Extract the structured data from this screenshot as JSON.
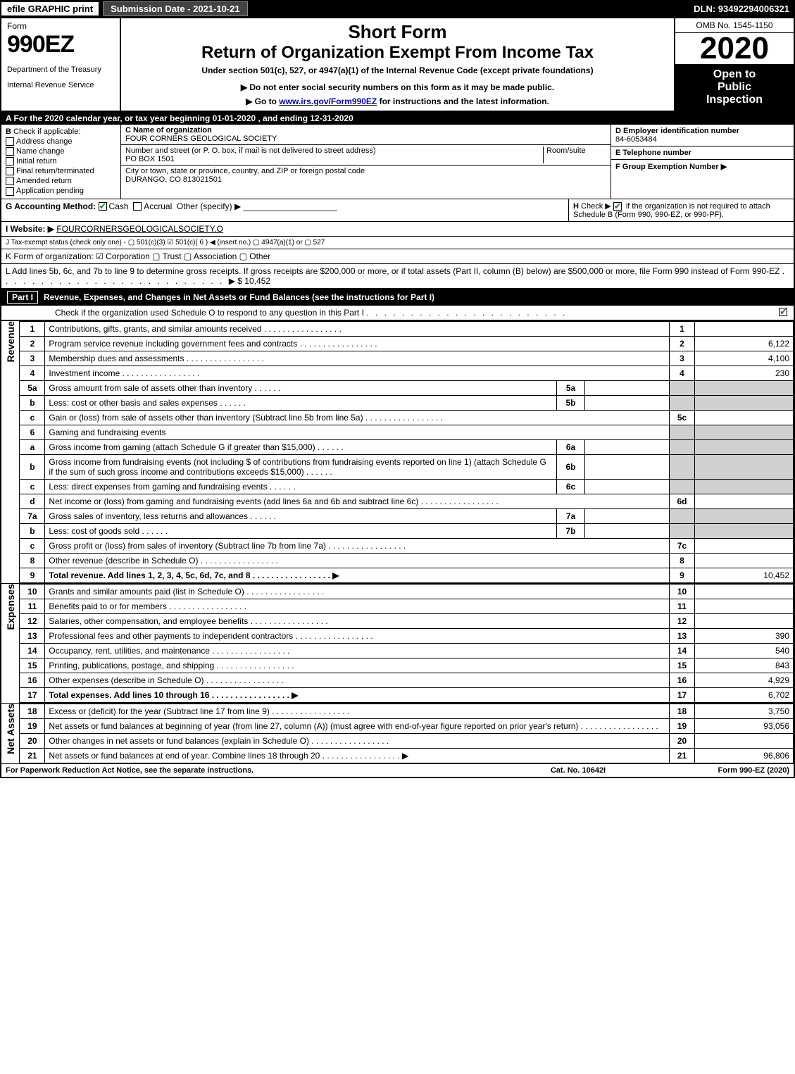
{
  "topbar": {
    "efile": "efile GRAPHIC print",
    "submission": "Submission Date - 2021-10-21",
    "dln": "DLN: 93492294006321"
  },
  "header": {
    "form_label": "Form",
    "form_number": "990EZ",
    "short_form": "Short Form",
    "main_title": "Return of Organization Exempt From Income Tax",
    "subtitle": "Under section 501(c), 527, or 4947(a)(1) of the Internal Revenue Code (except private foundations)",
    "note1_prefix": "▶ Do not enter social security numbers on this form as it may be made public.",
    "note2_prefix": "▶ Go to ",
    "note2_link": "www.irs.gov/Form990EZ",
    "note2_suffix": " for instructions and the latest information.",
    "dept1": "Department of the Treasury",
    "dept2": "Internal Revenue Service",
    "omb": "OMB No. 1545-1150",
    "year": "2020",
    "inspect1": "Open to",
    "inspect2": "Public",
    "inspect3": "Inspection"
  },
  "line_a": "A For the 2020 calendar year, or tax year beginning 01-01-2020 , and ending 12-31-2020",
  "section_b": {
    "title": "B",
    "check_label": "Check if applicable:",
    "opts": [
      "Address change",
      "Name change",
      "Initial return",
      "Final return/terminated",
      "Amended return",
      "Application pending"
    ]
  },
  "section_c": {
    "name_label": "C Name of organization",
    "name": "FOUR CORNERS GEOLOGICAL SOCIETY",
    "addr_label": "Number and street (or P. O. box, if mail is not delivered to street address)",
    "room_label": "Room/suite",
    "addr": "PO BOX 1501",
    "city_label": "City or town, state or province, country, and ZIP or foreign postal code",
    "city": "DURANGO, CO  813021501"
  },
  "section_d": {
    "label": "D Employer identification number",
    "value": "84-6053484"
  },
  "section_e": {
    "label": "E Telephone number",
    "value": ""
  },
  "section_f": {
    "label": "F Group Exemption Number  ▶",
    "value": ""
  },
  "line_g": {
    "label": "G Accounting Method:",
    "cash": "Cash",
    "accrual": "Accrual",
    "other": "Other (specify) ▶"
  },
  "line_h": {
    "label": "H",
    "text1": "Check ▶",
    "text2": "if the organization is not required to attach Schedule B (Form 990, 990-EZ, or 990-PF)."
  },
  "line_i": {
    "label": "I Website: ▶",
    "value": "FOURCORNERSGEOLOGICALSOCIETY.O"
  },
  "line_j": "J Tax-exempt status (check only one) -  ▢ 501(c)(3)  ☑ 501(c)( 6 ) ◀ (insert no.)  ▢ 4947(a)(1) or  ▢ 527",
  "line_k": "K Form of organization:  ☑ Corporation  ▢ Trust  ▢ Association  ▢ Other",
  "line_l": {
    "text": "L Add lines 5b, 6c, and 7b to line 9 to determine gross receipts. If gross receipts are $200,000 or more, or if total assets (Part II, column (B) below) are $500,000 or more, file Form 990 instead of Form 990-EZ",
    "arrow": "▶",
    "amount": "$ 10,452"
  },
  "part1": {
    "label": "Part I",
    "title": "Revenue, Expenses, and Changes in Net Assets or Fund Balances (see the instructions for Part I)",
    "check_note": "Check if the organization used Schedule O to respond to any question in this Part I",
    "dots": ". . . . . . . . . . . . . . . . . . . . . . .",
    "checked": true
  },
  "sections": {
    "revenue": "Revenue",
    "expenses": "Expenses",
    "netassets": "Net Assets"
  },
  "rows": [
    {
      "n": "1",
      "text": "Contributions, gifts, grants, and similar amounts received",
      "box": "1",
      "amt": ""
    },
    {
      "n": "2",
      "text": "Program service revenue including government fees and contracts",
      "box": "2",
      "amt": "6,122"
    },
    {
      "n": "3",
      "text": "Membership dues and assessments",
      "box": "3",
      "amt": "4,100"
    },
    {
      "n": "4",
      "text": "Investment income",
      "box": "4",
      "amt": "230"
    },
    {
      "n": "5a",
      "text": "Gross amount from sale of assets other than inventory",
      "sub": "5a",
      "subamt": "",
      "grey": true
    },
    {
      "n": "b",
      "text": "Less: cost or other basis and sales expenses",
      "sub": "5b",
      "subamt": "",
      "grey": true
    },
    {
      "n": "c",
      "text": "Gain or (loss) from sale of assets other than inventory (Subtract line 5b from line 5a)",
      "box": "5c",
      "amt": ""
    },
    {
      "n": "6",
      "text": "Gaming and fundraising events",
      "plain": true
    },
    {
      "n": "a",
      "text": "Gross income from gaming (attach Schedule G if greater than $15,000)",
      "sub": "6a",
      "subamt": "",
      "grey": true
    },
    {
      "n": "b",
      "text": "Gross income from fundraising events (not including $                  of contributions from fundraising events reported on line 1) (attach Schedule G if the sum of such gross income and contributions exceeds $15,000)",
      "sub": "6b",
      "subamt": "",
      "grey": true
    },
    {
      "n": "c",
      "text": "Less: direct expenses from gaming and fundraising events",
      "sub": "6c",
      "subamt": "",
      "grey": true
    },
    {
      "n": "d",
      "text": "Net income or (loss) from gaming and fundraising events (add lines 6a and 6b and subtract line 6c)",
      "box": "6d",
      "amt": ""
    },
    {
      "n": "7a",
      "text": "Gross sales of inventory, less returns and allowances",
      "sub": "7a",
      "subamt": "",
      "grey": true
    },
    {
      "n": "b",
      "text": "Less: cost of goods sold",
      "sub": "7b",
      "subamt": "",
      "grey": true
    },
    {
      "n": "c",
      "text": "Gross profit or (loss) from sales of inventory (Subtract line 7b from line 7a)",
      "box": "7c",
      "amt": ""
    },
    {
      "n": "8",
      "text": "Other revenue (describe in Schedule O)",
      "box": "8",
      "amt": ""
    },
    {
      "n": "9",
      "text": "Total revenue. Add lines 1, 2, 3, 4, 5c, 6d, 7c, and 8",
      "box": "9",
      "amt": "10,452",
      "bold": true,
      "arrow": true
    }
  ],
  "exp_rows": [
    {
      "n": "10",
      "text": "Grants and similar amounts paid (list in Schedule O)",
      "box": "10",
      "amt": ""
    },
    {
      "n": "11",
      "text": "Benefits paid to or for members",
      "box": "11",
      "amt": ""
    },
    {
      "n": "12",
      "text": "Salaries, other compensation, and employee benefits",
      "box": "12",
      "amt": ""
    },
    {
      "n": "13",
      "text": "Professional fees and other payments to independent contractors",
      "box": "13",
      "amt": "390"
    },
    {
      "n": "14",
      "text": "Occupancy, rent, utilities, and maintenance",
      "box": "14",
      "amt": "540"
    },
    {
      "n": "15",
      "text": "Printing, publications, postage, and shipping",
      "box": "15",
      "amt": "843"
    },
    {
      "n": "16",
      "text": "Other expenses (describe in Schedule O)",
      "box": "16",
      "amt": "4,929"
    },
    {
      "n": "17",
      "text": "Total expenses. Add lines 10 through 16",
      "box": "17",
      "amt": "6,702",
      "bold": true,
      "arrow": true
    }
  ],
  "na_rows": [
    {
      "n": "18",
      "text": "Excess or (deficit) for the year (Subtract line 17 from line 9)",
      "box": "18",
      "amt": "3,750"
    },
    {
      "n": "19",
      "text": "Net assets or fund balances at beginning of year (from line 27, column (A)) (must agree with end-of-year figure reported on prior year's return)",
      "box": "19",
      "amt": "93,056"
    },
    {
      "n": "20",
      "text": "Other changes in net assets or fund balances (explain in Schedule O)",
      "box": "20",
      "amt": ""
    },
    {
      "n": "21",
      "text": "Net assets or fund balances at end of year. Combine lines 18 through 20",
      "box": "21",
      "amt": "96,806",
      "arrow": true
    }
  ],
  "footer": {
    "left": "For Paperwork Reduction Act Notice, see the separate instructions.",
    "mid": "Cat. No. 10642I",
    "right": "Form 990-EZ (2020)"
  }
}
